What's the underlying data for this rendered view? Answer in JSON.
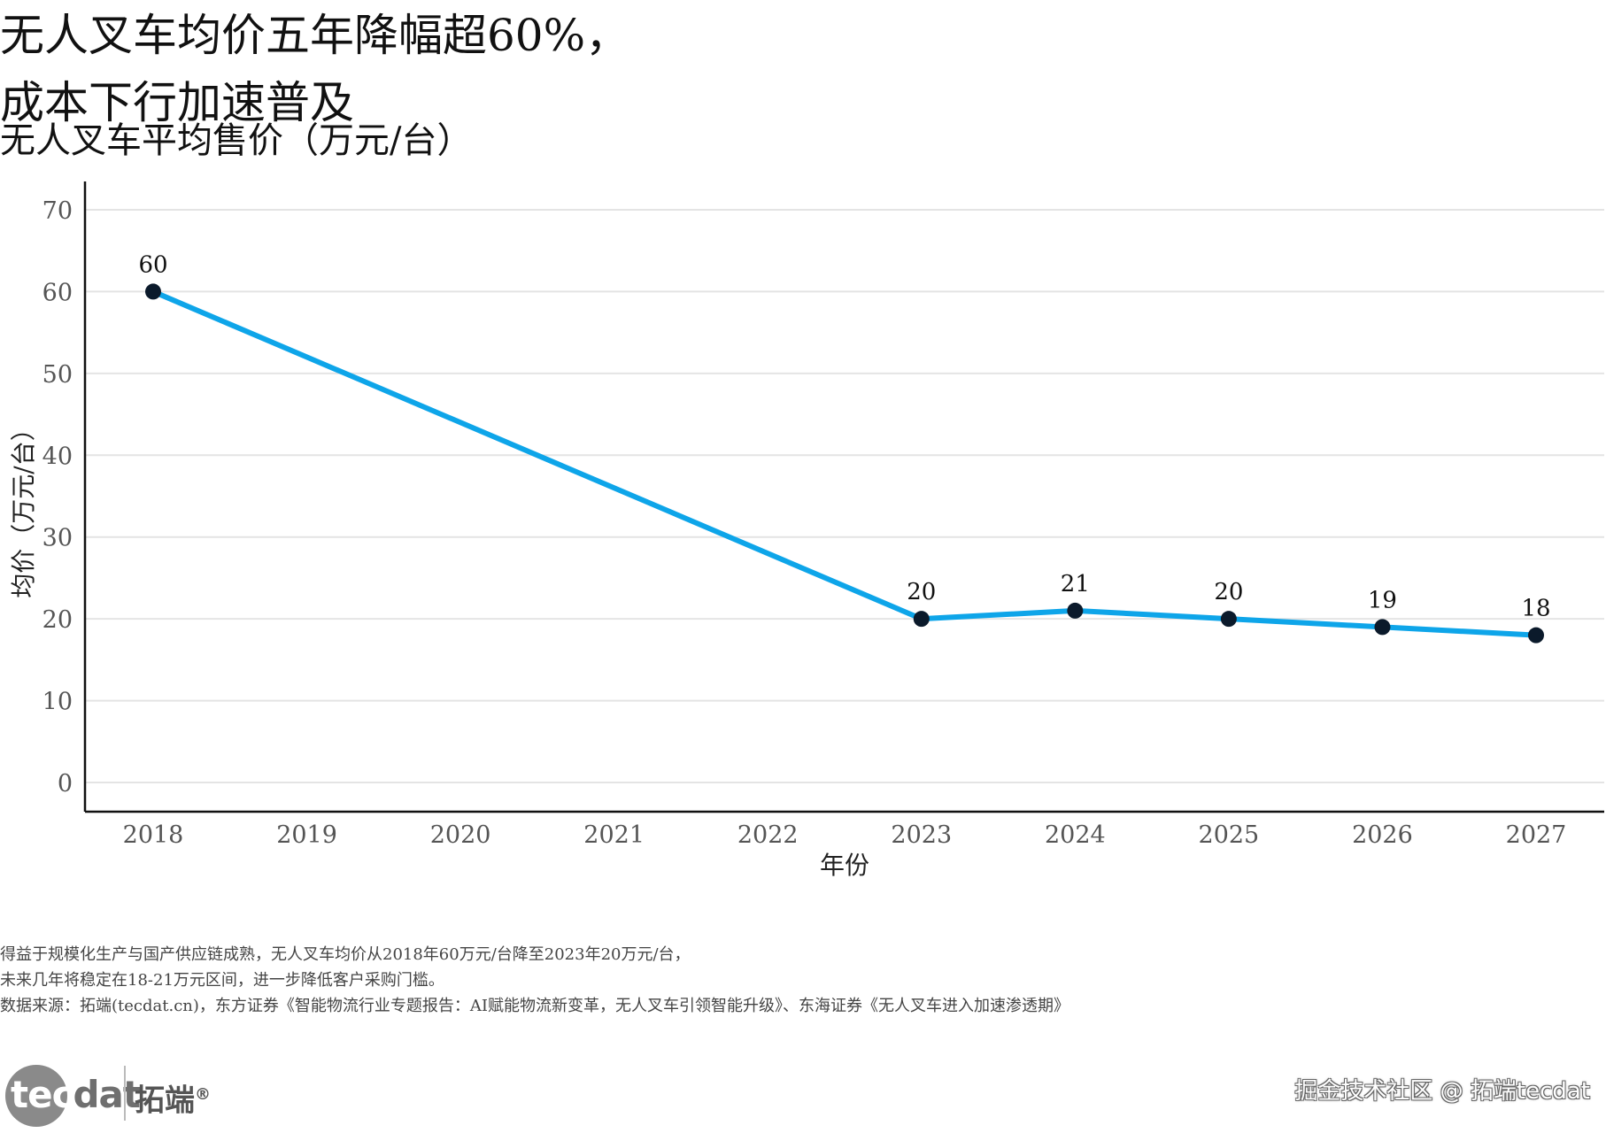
{
  "title_lines": [
    "无人叉车均价五年降幅超60%，",
    "成本下行加速普及"
  ],
  "subtitle": "无人叉车平均售价（万元/台）",
  "colors": {
    "line": "#0ea5e9",
    "point": "#0b1a2b",
    "grid": "#e4e4e4",
    "axis": "#111111"
  },
  "chart_data": {
    "type": "line",
    "title": "无人叉车平均售价（万元/台）",
    "xlabel": "年份",
    "ylabel": "均价（万元/台）",
    "x_ticks": [
      "2018",
      "2019",
      "2020",
      "2021",
      "2022",
      "2023",
      "2024",
      "2025",
      "2026",
      "2027"
    ],
    "y_ticks": [
      0,
      10,
      20,
      30,
      40,
      50,
      60,
      70
    ],
    "ylim": [
      0,
      70
    ],
    "xlim": [
      2018,
      2027
    ],
    "series": [
      {
        "name": "平均售价",
        "points": [
          {
            "x": 2018,
            "y": 60,
            "label": "60"
          },
          {
            "x": 2023,
            "y": 20,
            "label": "20"
          },
          {
            "x": 2024,
            "y": 21,
            "label": "21"
          },
          {
            "x": 2025,
            "y": 20,
            "label": "20"
          },
          {
            "x": 2026,
            "y": 19,
            "label": "19"
          },
          {
            "x": 2027,
            "y": 18,
            "label": "18"
          }
        ]
      }
    ]
  },
  "caption_lines": [
    "得益于规模化生产与国产供应链成熟，无人叉车均价从2018年60万元/台降至2023年20万元/台，",
    "未来几年将稳定在18-21万元区间，进一步降低客户采购门槛。",
    "数据来源：拓端(tecdat.cn)，东方证券《智能物流行业专题报告：AI赋能物流新变革，无人叉车引领智能升级》、东海证券《无人叉车进入加速渗透期》"
  ],
  "logo": {
    "part_a": "tec",
    "part_b": "dat",
    "cn": "拓端",
    "mark": "®"
  },
  "watermark": "掘金技术社区 @ 拓端tecdat"
}
